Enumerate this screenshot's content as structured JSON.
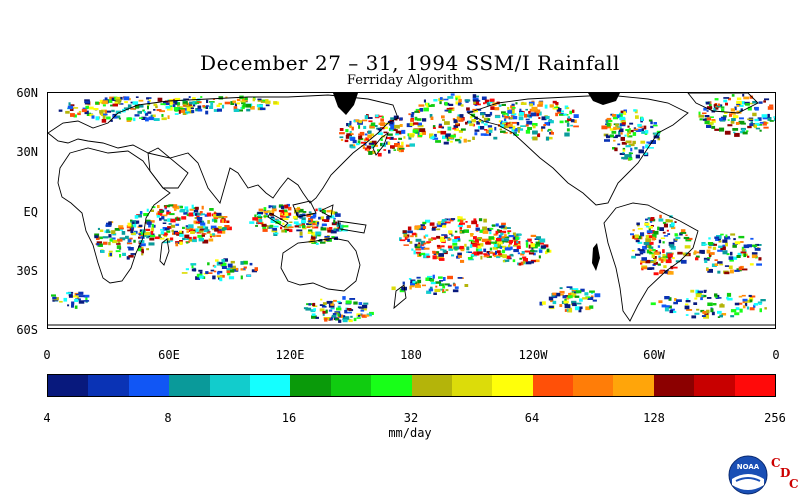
{
  "title": "December 27 – 31, 1994 SSM/I Rainfall",
  "subtitle": "Ferriday Algorithm",
  "map": {
    "lat_labels": [
      "60N",
      "30N",
      "EQ",
      "30S",
      "60S"
    ],
    "lon_labels": [
      "0",
      "60E",
      "120E",
      "180",
      "120W",
      "60W",
      "0"
    ],
    "precip_levels_mm_day": [
      4,
      8,
      16,
      32,
      64,
      128,
      256
    ]
  },
  "colorbar": {
    "tick_labels": [
      "4",
      "8",
      "16",
      "32",
      "64",
      "128",
      "256"
    ],
    "units": "mm/day",
    "colors": [
      "#08197d",
      "#0a33b5",
      "#1156f5",
      "#0a9a9a",
      "#12cccc",
      "#14ffff",
      "#0a9a0a",
      "#10cc10",
      "#18ff18",
      "#b4b40a",
      "#dcdc0a",
      "#ffff0a",
      "#ff5008",
      "#ff7d08",
      "#ffa50a",
      "#8c0000",
      "#c80000",
      "#ff0a0a"
    ]
  },
  "logo": {
    "name": "NOAA",
    "letters": [
      "C",
      "D",
      "C"
    ]
  }
}
